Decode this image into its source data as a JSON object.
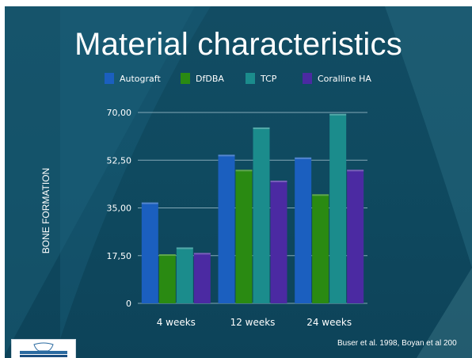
{
  "slide": {
    "title": "Material characteristics",
    "citation": "Buser et al. 1998, Boyan et al 200"
  },
  "chart_data": {
    "type": "bar",
    "title": "",
    "xlabel": "",
    "ylabel": "BONE FORMATION",
    "categories": [
      "4 weeks",
      "12 weeks",
      "24 weeks"
    ],
    "yticks": [
      "0",
      "17,50",
      "35,00",
      "52,50",
      "70,00"
    ],
    "ylim": [
      0,
      70
    ],
    "grid": true,
    "legend_position": "top",
    "series": [
      {
        "name": "Autograft",
        "color": "#1b5fbf",
        "values": [
          37,
          54.5,
          53.5
        ]
      },
      {
        "name": "DfDBA",
        "color": "#2a8a12",
        "values": [
          18,
          49,
          40
        ]
      },
      {
        "name": "TCP",
        "color": "#1b8c8c",
        "values": [
          20.5,
          64.5,
          69.5
        ]
      },
      {
        "name": "Coralline HA",
        "color": "#4b2aa2",
        "values": [
          18.5,
          45,
          49
        ]
      }
    ]
  },
  "colors": {
    "background": "#0f4a60",
    "gridline": "#9fbfcc",
    "text": "#ffffff"
  },
  "icons": {
    "logo": "dental-logo"
  }
}
